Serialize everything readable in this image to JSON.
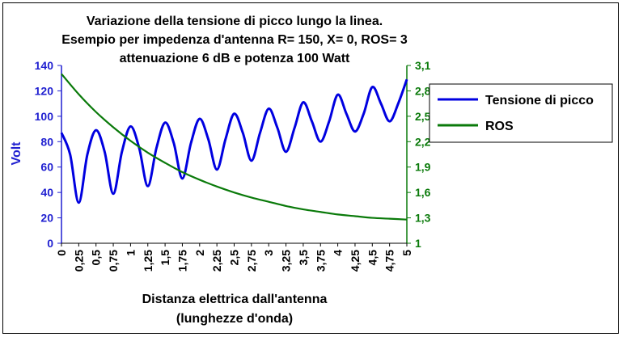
{
  "chart_data": {
    "type": "line",
    "title_lines": [
      "Variazione della tensione di picco lungo la linea.",
      "Esempio per impedenza d'antenna R= 150, X= 0, ROS= 3",
      "attenuazione 6 dB e potenza 100 Watt"
    ],
    "xlabel_lines": [
      "Distanza elettrica dall'antenna",
      "(lunghezze d'onda)"
    ],
    "ylabel_left": "Volt",
    "ylabel_right": "",
    "x_range": [
      0,
      5
    ],
    "y_left_range": [
      0,
      140
    ],
    "y_right_range": [
      1,
      3.1
    ],
    "x_ticks": [
      "0",
      "0,25",
      "0,5",
      "0,75",
      "1",
      "1,25",
      "1,5",
      "1,75",
      "2",
      "2,25",
      "2,5",
      "2,75",
      "3",
      "3,25",
      "3,5",
      "3,75",
      "4",
      "4,25",
      "4,5",
      "4,75",
      "5"
    ],
    "y_left_ticks": [
      "0",
      "20",
      "40",
      "60",
      "80",
      "100",
      "120",
      "140"
    ],
    "y_right_ticks": [
      "1",
      "1,3",
      "1,6",
      "1,9",
      "2,2",
      "2,5",
      "2,8",
      "3,1"
    ],
    "grid": false,
    "legend_position": "right",
    "series": [
      {
        "name": "Tensione di picco",
        "axis": "left",
        "color": "#0000e0",
        "x": [
          0,
          0.125,
          0.25,
          0.375,
          0.5,
          0.625,
          0.75,
          0.875,
          1,
          1.125,
          1.25,
          1.375,
          1.5,
          1.625,
          1.75,
          1.875,
          2,
          2.125,
          2.25,
          2.375,
          2.5,
          2.625,
          2.75,
          2.875,
          3,
          3.125,
          3.25,
          3.375,
          3.5,
          3.625,
          3.75,
          3.875,
          4,
          4.125,
          4.25,
          4.375,
          4.5,
          4.625,
          4.75,
          4.875,
          5
        ],
        "y": [
          87,
          70,
          32,
          70,
          89,
          72,
          39,
          72,
          92,
          75,
          45,
          75,
          95,
          79,
          51,
          79,
          98,
          82,
          58,
          82,
          102,
          87,
          65,
          87,
          106,
          91,
          72,
          91,
          111,
          96,
          80,
          96,
          117,
          102,
          88,
          102,
          123,
          110,
          96,
          110,
          129
        ]
      },
      {
        "name": "ROS",
        "axis": "right",
        "color": "#0a7a0a",
        "x": [
          0,
          0.25,
          0.5,
          0.75,
          1,
          1.25,
          1.5,
          1.75,
          2,
          2.25,
          2.5,
          2.75,
          3,
          3.25,
          3.5,
          3.75,
          4,
          4.25,
          4.5,
          4.75,
          5
        ],
        "y": [
          3.0,
          2.76,
          2.55,
          2.37,
          2.21,
          2.07,
          1.95,
          1.84,
          1.75,
          1.67,
          1.6,
          1.54,
          1.49,
          1.44,
          1.4,
          1.37,
          1.34,
          1.32,
          1.3,
          1.29,
          1.28
        ]
      }
    ]
  }
}
